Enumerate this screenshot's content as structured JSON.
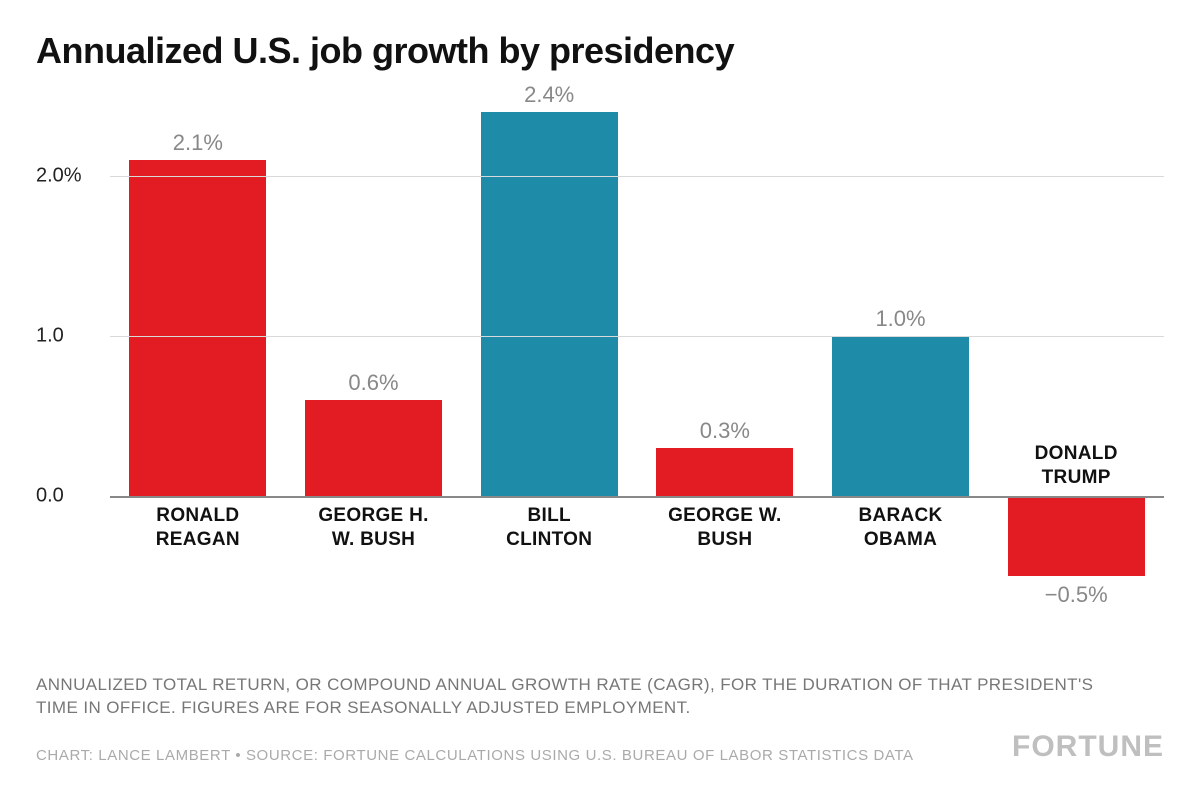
{
  "title": "Annualized U.S. job growth by presidency",
  "chart": {
    "type": "bar",
    "background_color": "#ffffff",
    "grid_color": "#d9d9d9",
    "baseline_color": "#888888",
    "ylim": [
      -1.0,
      2.5
    ],
    "yticks": [
      {
        "value": 0.0,
        "label": "0.0"
      },
      {
        "value": 1.0,
        "label": "1.0"
      },
      {
        "value": 2.0,
        "label": "2.0%"
      }
    ],
    "bar_width_pct": 78,
    "value_label_color": "#888888",
    "title_fontsize": 36,
    "tick_fontsize": 20,
    "category_fontsize": 19,
    "value_fontsize": 22,
    "colors": {
      "republican": "#e31b23",
      "democrat": "#1e8ca8"
    },
    "bars": [
      {
        "category": "RONALD REAGAN",
        "value": 2.1,
        "label": "2.1%",
        "color": "#e31b23"
      },
      {
        "category": "GEORGE H. W. BUSH",
        "value": 0.6,
        "label": "0.6%",
        "color": "#e31b23"
      },
      {
        "category": "BILL CLINTON",
        "value": 2.4,
        "label": "2.4%",
        "color": "#1e8ca8"
      },
      {
        "category": "GEORGE W. BUSH",
        "value": 0.3,
        "label": "0.3%",
        "color": "#e31b23"
      },
      {
        "category": "BARACK OBAMA",
        "value": 1.0,
        "label": "1.0%",
        "color": "#1e8ca8"
      },
      {
        "category": "DONALD TRUMP",
        "value": -0.5,
        "label": "−0.5%",
        "color": "#e31b23"
      }
    ]
  },
  "footnote": "ANNUALIZED TOTAL RETURN, OR COMPOUND ANNUAL GROWTH RATE (CAGR), FOR THE DURATION OF THAT PRESIDENT'S TIME IN OFFICE. FIGURES ARE FOR SEASONALLY ADJUSTED EMPLOYMENT.",
  "source": "CHART: LANCE LAMBERT • SOURCE: FORTUNE CALCULATIONS USING U.S. BUREAU OF LABOR STATISTICS DATA",
  "logo": "FORTUNE"
}
